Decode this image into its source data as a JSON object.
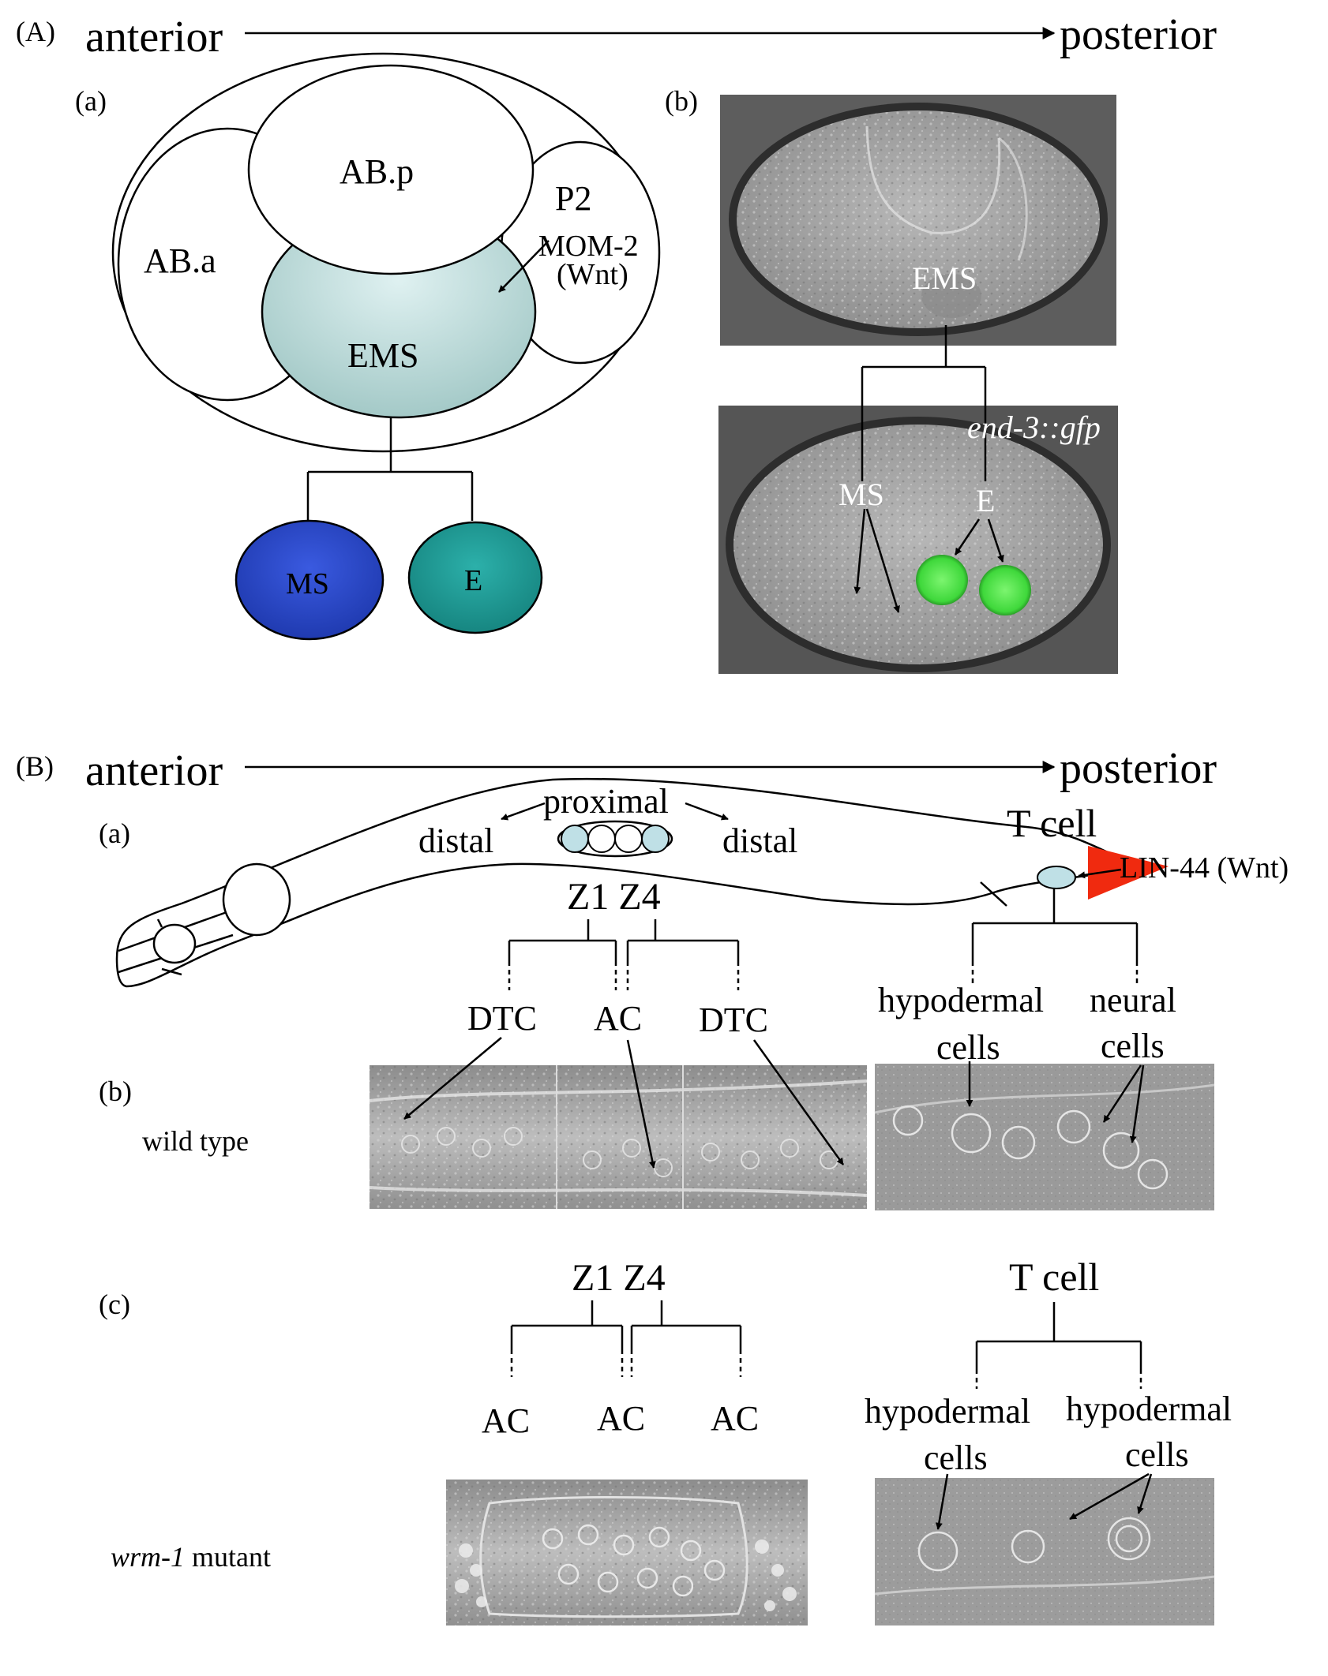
{
  "partA": {
    "panel_label": "(A)",
    "axis": {
      "left": "anterior",
      "right": "posterior"
    },
    "sub_a": "(a)",
    "sub_b": "(b)",
    "cells": {
      "ABa": "AB.a",
      "ABp": "AB.p",
      "P2": "P2",
      "EMS": "EMS",
      "MS": "MS",
      "E": "E"
    },
    "signal_line1": "MOM-2",
    "signal_line2": "(Wnt)",
    "micro": {
      "EMS": "EMS",
      "marker": "end-3::gfp",
      "MS": "MS",
      "E": "E"
    },
    "colors": {
      "EMS": "#a9cdcb",
      "MS": "#2a47c6",
      "E": "#1e9b96",
      "gfp": "#4de04a"
    }
  },
  "partB": {
    "panel_label": "(B)",
    "axis": {
      "left": "anterior",
      "right": "posterior"
    },
    "sub_a": "(a)",
    "sub_b": "(b)",
    "sub_c": "(c)",
    "proximal": "proximal",
    "distal_left": "distal",
    "distal_right": "distal",
    "tcell": "T cell",
    "signal": "LIN-44 (Wnt)",
    "z1z4": "Z1 Z4",
    "wt_gonad": [
      "DTC",
      "AC",
      "DTC"
    ],
    "wt_tcell_left": [
      "hypodermal",
      "cells"
    ],
    "wt_tcell_right": [
      "neural",
      "cells"
    ],
    "wt_label": "wild type",
    "mut_z1z4": "Z1 Z4",
    "mut_tcell": "T cell",
    "mut_gonad": [
      "AC",
      "AC",
      "AC"
    ],
    "mut_tcell_left": [
      "hypodermal",
      "cells"
    ],
    "mut_tcell_right": [
      "hypodermal",
      "cells"
    ],
    "mut_gene": "wrm-1",
    "mut_suffix": " mutant",
    "colors": {
      "cell": "#bfe0e6",
      "signal": "#f02a0f"
    }
  }
}
